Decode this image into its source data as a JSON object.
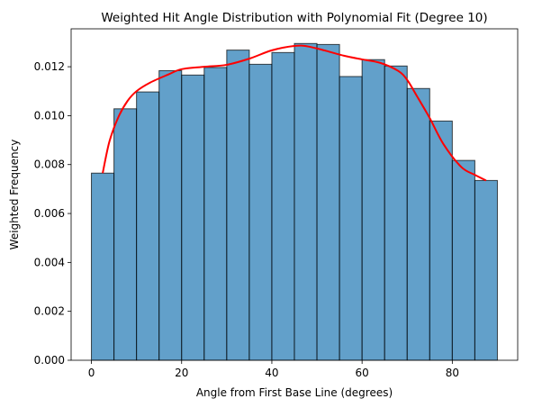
{
  "chart_data": {
    "type": "bar",
    "title": "Weighted Hit Angle Distribution with Polynomial Fit (Degree 10)",
    "xlabel": "Angle from First Base Line (degrees)",
    "ylabel": "Weighted Frequency",
    "xlim": [
      -4.5,
      94.5
    ],
    "ylim": [
      0,
      0.01355
    ],
    "grid": false,
    "legend": "none",
    "xticks": [
      0,
      20,
      40,
      60,
      80
    ],
    "xtick_labels": [
      "0",
      "20",
      "40",
      "60",
      "80"
    ],
    "yticks": [
      0,
      0.002,
      0.004,
      0.006,
      0.008,
      0.01,
      0.012
    ],
    "ytick_labels": [
      "0.000",
      "0.002",
      "0.004",
      "0.006",
      "0.008",
      "0.010",
      "0.012"
    ],
    "bin_edges": [
      0,
      5,
      10,
      15,
      20,
      25,
      30,
      35,
      40,
      45,
      50,
      55,
      60,
      65,
      70,
      75,
      80,
      85,
      90
    ],
    "values": [
      0.00765,
      0.01028,
      0.01097,
      0.01184,
      0.01166,
      0.01197,
      0.01268,
      0.0121,
      0.01258,
      0.01295,
      0.01291,
      0.0116,
      0.01229,
      0.01203,
      0.01111,
      0.00978,
      0.00817,
      0.00735
    ],
    "fit_line": {
      "color": "#ff0000",
      "x": [
        2.5,
        4,
        6,
        8,
        10,
        13,
        17,
        20,
        25,
        30,
        35,
        40,
        45,
        48,
        52,
        56,
        60,
        64,
        68,
        70,
        72,
        75,
        78,
        82,
        85,
        87.5
      ],
      "y": [
        0.00765,
        0.00895,
        0.00995,
        0.0106,
        0.011,
        0.01135,
        0.01168,
        0.0119,
        0.012,
        0.01208,
        0.01233,
        0.01267,
        0.01285,
        0.01283,
        0.01265,
        0.01245,
        0.0123,
        0.01216,
        0.01183,
        0.01146,
        0.01085,
        0.0099,
        0.00885,
        0.0079,
        0.00758,
        0.00735
      ]
    },
    "bar_color": "#1f77b4"
  }
}
